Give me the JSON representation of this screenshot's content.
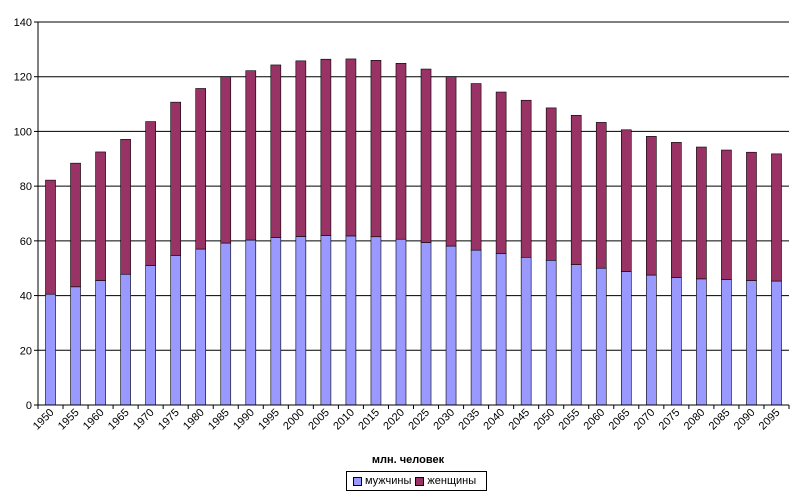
{
  "chart_data": {
    "type": "bar",
    "stacked": true,
    "title": "",
    "xlabel": "млн. человек",
    "ylabel": "",
    "ylim": [
      0,
      140
    ],
    "yticks": [
      0,
      20,
      40,
      60,
      80,
      100,
      120,
      140
    ],
    "grid": true,
    "legend_position": "bottom",
    "categories": [
      "1950",
      "1955",
      "1960",
      "1965",
      "1970",
      "1975",
      "1980",
      "1985",
      "1990",
      "1995",
      "2000",
      "2005",
      "2010",
      "2015",
      "2020",
      "2025",
      "2030",
      "2035",
      "2040",
      "2045",
      "2050",
      "2055",
      "2060",
      "2065",
      "2070",
      "2075",
      "2080",
      "2085",
      "2090",
      "2095"
    ],
    "series": [
      {
        "name": "мужчины",
        "color": "#9999ff",
        "values": [
          40.5,
          43.2,
          45.5,
          47.8,
          51.0,
          54.7,
          57.0,
          59.2,
          60.3,
          61.2,
          61.6,
          61.9,
          61.8,
          61.5,
          60.6,
          59.4,
          58.1,
          56.6,
          55.3,
          54.0,
          52.9,
          51.3,
          50.0,
          48.8,
          47.5,
          46.6,
          46.1,
          45.8,
          45.5,
          45.3
        ]
      },
      {
        "name": "женщины",
        "color": "#993366",
        "values": [
          41.7,
          45.2,
          47.0,
          49.3,
          52.6,
          56.0,
          58.7,
          60.8,
          61.9,
          63.1,
          64.2,
          64.5,
          64.7,
          64.5,
          64.3,
          63.4,
          61.9,
          60.9,
          59.1,
          57.4,
          55.7,
          54.6,
          53.3,
          51.8,
          50.7,
          49.4,
          48.2,
          47.4,
          46.9,
          46.5
        ]
      }
    ]
  }
}
